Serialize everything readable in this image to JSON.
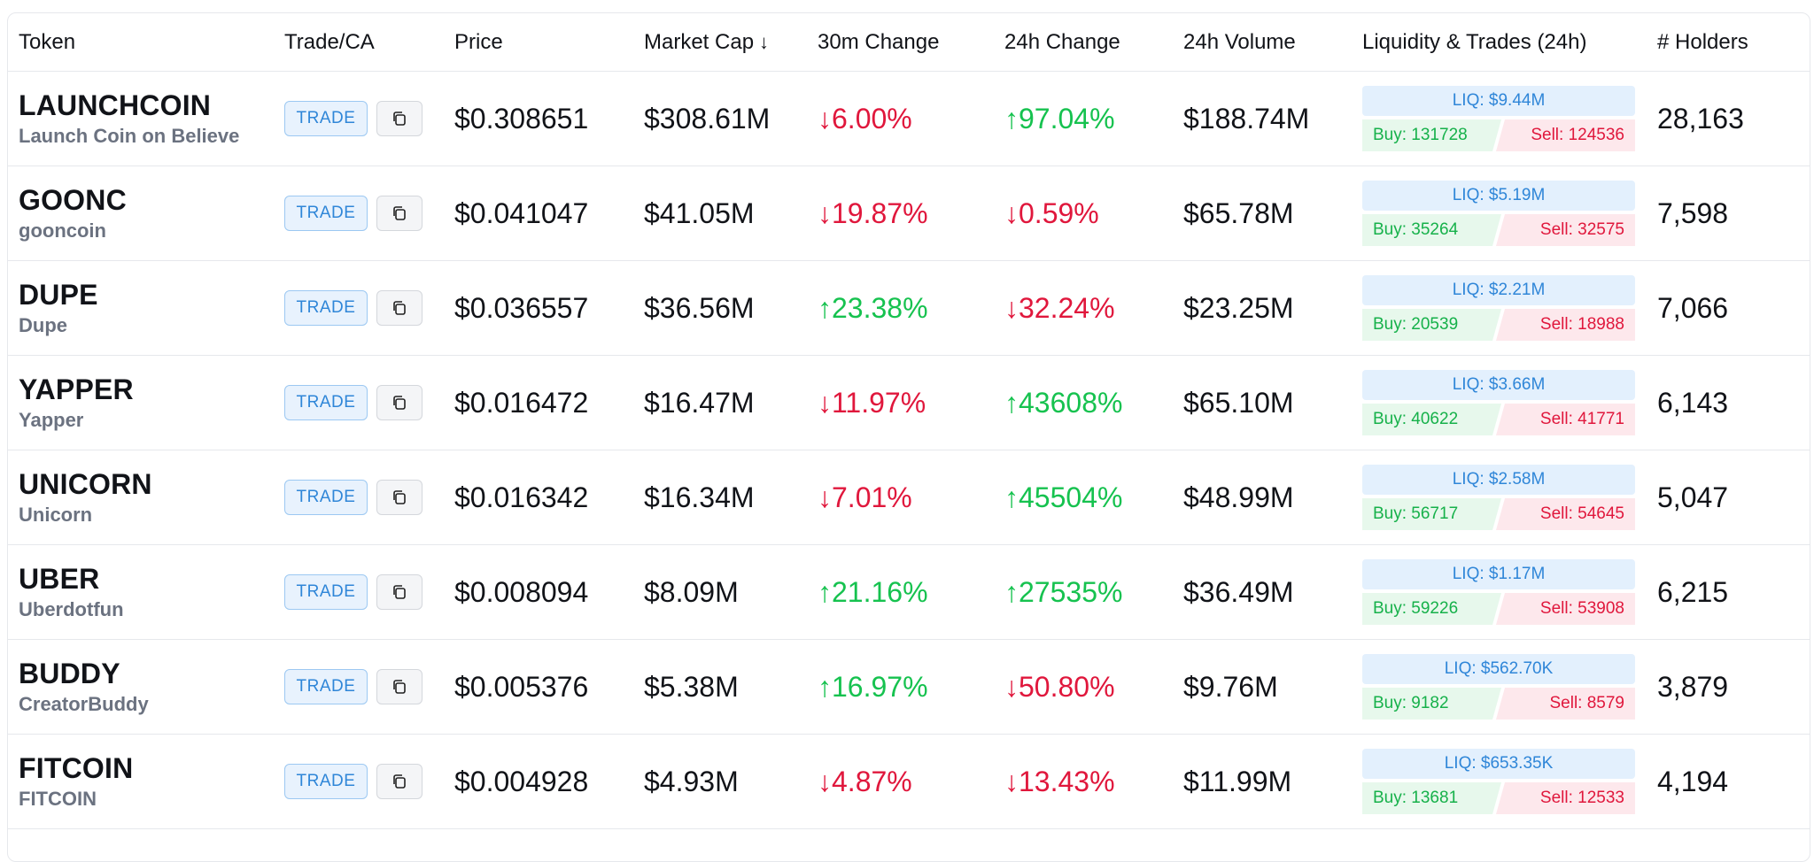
{
  "headers": {
    "token": "Token",
    "trade_ca": "Trade/CA",
    "price": "Price",
    "market_cap": "Market Cap",
    "market_cap_sort_icon": "arrow-down-icon",
    "change_30m": "30m Change",
    "change_24h": "24h Change",
    "volume_24h": "24h Volume",
    "liquidity_trades": "Liquidity & Trades (24h)",
    "holders": "# Holders"
  },
  "trade_label": "TRADE",
  "colors": {
    "up": "#16c24f",
    "down": "#e0173c",
    "accent": "#2f86d8"
  },
  "rows": [
    {
      "symbol": "LAUNCHCOIN",
      "name": "Launch Coin on Believe",
      "price": "$0.308651",
      "market_cap": "$308.61M",
      "change_30m": "↓6.00%",
      "change_30m_dir": "down",
      "change_24h": "↑97.04%",
      "change_24h_dir": "up",
      "volume": "$188.74M",
      "liq": "LIQ: $9.44M",
      "buy": "Buy: 131728",
      "sell": "Sell: 124536",
      "holders": "28,163"
    },
    {
      "symbol": "GOONC",
      "name": "gooncoin",
      "price": "$0.041047",
      "market_cap": "$41.05M",
      "change_30m": "↓19.87%",
      "change_30m_dir": "down",
      "change_24h": "↓0.59%",
      "change_24h_dir": "down",
      "volume": "$65.78M",
      "liq": "LIQ: $5.19M",
      "buy": "Buy: 35264",
      "sell": "Sell: 32575",
      "holders": "7,598"
    },
    {
      "symbol": "DUPE",
      "name": "Dupe",
      "price": "$0.036557",
      "market_cap": "$36.56M",
      "change_30m": "↑23.38%",
      "change_30m_dir": "up",
      "change_24h": "↓32.24%",
      "change_24h_dir": "down",
      "volume": "$23.25M",
      "liq": "LIQ: $2.21M",
      "buy": "Buy: 20539",
      "sell": "Sell: 18988",
      "holders": "7,066"
    },
    {
      "symbol": "YAPPER",
      "name": "Yapper",
      "price": "$0.016472",
      "market_cap": "$16.47M",
      "change_30m": "↓11.97%",
      "change_30m_dir": "down",
      "change_24h": "↑43608%",
      "change_24h_dir": "up",
      "volume": "$65.10M",
      "liq": "LIQ: $3.66M",
      "buy": "Buy: 40622",
      "sell": "Sell: 41771",
      "holders": "6,143"
    },
    {
      "symbol": "UNICORN",
      "name": "Unicorn",
      "price": "$0.016342",
      "market_cap": "$16.34M",
      "change_30m": "↓7.01%",
      "change_30m_dir": "down",
      "change_24h": "↑45504%",
      "change_24h_dir": "up",
      "volume": "$48.99M",
      "liq": "LIQ: $2.58M",
      "buy": "Buy: 56717",
      "sell": "Sell: 54645",
      "holders": "5,047"
    },
    {
      "symbol": "UBER",
      "name": "Uberdotfun",
      "price": "$0.008094",
      "market_cap": "$8.09M",
      "change_30m": "↑21.16%",
      "change_30m_dir": "up",
      "change_24h": "↑27535%",
      "change_24h_dir": "up",
      "volume": "$36.49M",
      "liq": "LIQ: $1.17M",
      "buy": "Buy: 59226",
      "sell": "Sell: 53908",
      "holders": "6,215"
    },
    {
      "symbol": "BUDDY",
      "name": "CreatorBuddy",
      "price": "$0.005376",
      "market_cap": "$5.38M",
      "change_30m": "↑16.97%",
      "change_30m_dir": "up",
      "change_24h": "↓50.80%",
      "change_24h_dir": "down",
      "volume": "$9.76M",
      "liq": "LIQ: $562.70K",
      "buy": "Buy: 9182",
      "sell": "Sell: 8579",
      "holders": "3,879"
    },
    {
      "symbol": "FITCOIN",
      "name": "FITCOIN",
      "price": "$0.004928",
      "market_cap": "$4.93M",
      "change_30m": "↓4.87%",
      "change_30m_dir": "down",
      "change_24h": "↓13.43%",
      "change_24h_dir": "down",
      "volume": "$11.99M",
      "liq": "LIQ: $653.35K",
      "buy": "Buy: 13681",
      "sell": "Sell: 12533",
      "holders": "4,194"
    }
  ]
}
